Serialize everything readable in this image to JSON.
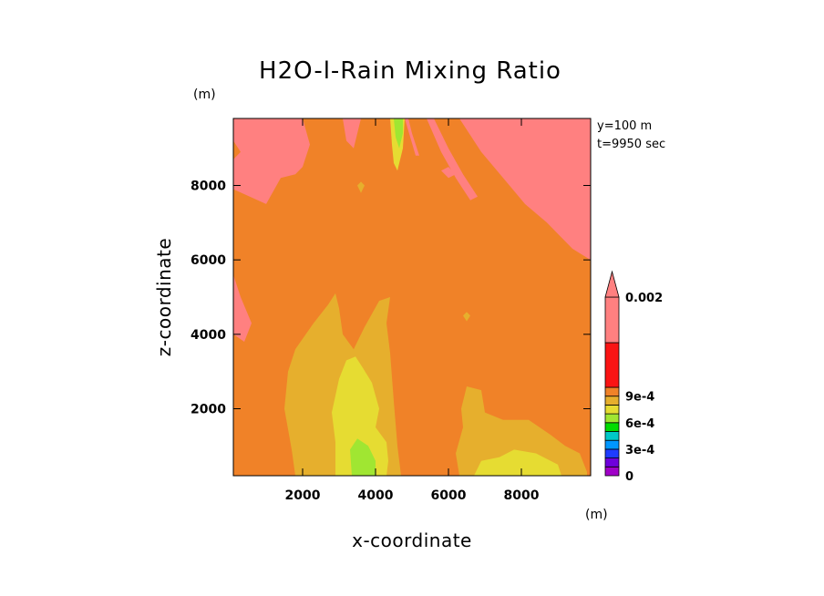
{
  "chart_data": {
    "type": "heatmap",
    "title": "H2O-l-Rain Mixing Ratio",
    "xlabel": "x-coordinate",
    "ylabel": "z-coordinate",
    "x_unit": "(m)",
    "y_unit": "(m)",
    "xlim": [
      100,
      9900
    ],
    "ylim": [
      200,
      9800
    ],
    "xticks": [
      2000,
      4000,
      6000,
      8000
    ],
    "yticks": [
      2000,
      4000,
      6000,
      8000
    ],
    "info": [
      "y=100 m",
      "t=9950 sec"
    ],
    "colorbar": {
      "levels": [
        0,
        0.0001,
        0.0002,
        0.0003,
        0.0004,
        0.0005,
        0.0006,
        0.0007,
        0.0008,
        0.0009,
        0.002
      ],
      "colors": [
        "#a000c8",
        "#6e00dc",
        "#1e3cff",
        "#0096ff",
        "#00c8c8",
        "#00dc00",
        "#a0e632",
        "#e6dc32",
        "#e6af2d",
        "#f08228",
        "#fa1414",
        "#ff8080"
      ],
      "labels": [
        {
          "value": 0,
          "text": "0"
        },
        {
          "value": 0.0003,
          "text": "3e-4"
        },
        {
          "value": 0.0006,
          "text": "6e-4"
        },
        {
          "value": 0.0009,
          "text": "9e-4"
        },
        {
          "value": 0.002,
          "text": "0.002"
        }
      ],
      "extend": "max"
    },
    "background_range": "9e-4 to 0.002",
    "regions": [
      {
        "range": "0.0008 to 0.0009",
        "polygon": [
          [
            1800,
            200
          ],
          [
            1700,
            900
          ],
          [
            1500,
            2000
          ],
          [
            1600,
            3000
          ],
          [
            1800,
            3600
          ],
          [
            2300,
            4300
          ],
          [
            2700,
            4800
          ],
          [
            2900,
            5100
          ],
          [
            3000,
            4700
          ],
          [
            3100,
            4000
          ],
          [
            3400,
            3600
          ],
          [
            3700,
            4200
          ],
          [
            4100,
            4900
          ],
          [
            4400,
            5000
          ],
          [
            4300,
            4300
          ],
          [
            4400,
            3500
          ],
          [
            4500,
            2200
          ],
          [
            4600,
            1000
          ],
          [
            4700,
            200
          ]
        ]
      },
      {
        "range": "0.0007 to 0.0008",
        "polygon": [
          [
            2900,
            200
          ],
          [
            2900,
            1100
          ],
          [
            2800,
            1900
          ],
          [
            3000,
            2800
          ],
          [
            3200,
            3300
          ],
          [
            3450,
            3400
          ],
          [
            3650,
            3100
          ],
          [
            3900,
            2700
          ],
          [
            4100,
            2000
          ],
          [
            4000,
            1500
          ],
          [
            4300,
            1100
          ],
          [
            4350,
            600
          ],
          [
            4300,
            200
          ]
        ]
      },
      {
        "range": "0.0006 to 0.0007",
        "polygon": [
          [
            3350,
            200
          ],
          [
            3300,
            900
          ],
          [
            3500,
            1200
          ],
          [
            3800,
            1000
          ],
          [
            4000,
            600
          ],
          [
            4000,
            200
          ]
        ]
      },
      {
        "range": "0.0008 to 0.0009",
        "polygon": [
          [
            6300,
            200
          ],
          [
            6200,
            800
          ],
          [
            6400,
            1500
          ],
          [
            6350,
            2000
          ],
          [
            6500,
            2600
          ],
          [
            6900,
            2500
          ],
          [
            7000,
            1900
          ],
          [
            7500,
            1700
          ],
          [
            8200,
            1700
          ],
          [
            8800,
            1300
          ],
          [
            9200,
            1000
          ],
          [
            9600,
            800
          ],
          [
            9800,
            300
          ],
          [
            9800,
            200
          ]
        ]
      },
      {
        "range": "0.0007 to 0.0008",
        "polygon": [
          [
            6700,
            200
          ],
          [
            6900,
            600
          ],
          [
            7400,
            700
          ],
          [
            7800,
            900
          ],
          [
            8400,
            800
          ],
          [
            9000,
            500
          ],
          [
            9100,
            200
          ]
        ]
      },
      {
        "range": "0.0007 to 0.0008",
        "polygon": [
          [
            4400,
            9800
          ],
          [
            4450,
            9100
          ],
          [
            4500,
            8600
          ],
          [
            4600,
            8400
          ],
          [
            4750,
            9000
          ],
          [
            4800,
            9800
          ]
        ]
      },
      {
        "range": "0.0006 to 0.0007",
        "polygon": [
          [
            4500,
            9800
          ],
          [
            4550,
            9300
          ],
          [
            4650,
            9000
          ],
          [
            4750,
            9400
          ],
          [
            4750,
            9800
          ]
        ]
      },
      {
        "range": "0.0008 to 0.0009",
        "polygon": [
          [
            3500,
            8000
          ],
          [
            3600,
            7800
          ],
          [
            3700,
            8000
          ],
          [
            3600,
            8100
          ]
        ]
      },
      {
        "range": "0.0008 to 0.0009",
        "polygon": [
          [
            6400,
            4500
          ],
          [
            6500,
            4350
          ],
          [
            6600,
            4500
          ],
          [
            6500,
            4600
          ]
        ]
      },
      {
        "range": "0.002 +",
        "polygon": [
          [
            100,
            9800
          ],
          [
            100,
            9200
          ],
          [
            300,
            8900
          ],
          [
            100,
            8700
          ],
          [
            100,
            7900
          ],
          [
            1000,
            7500
          ],
          [
            1400,
            8200
          ],
          [
            1800,
            8300
          ],
          [
            2000,
            8500
          ],
          [
            2200,
            9100
          ],
          [
            2000,
            9800
          ]
        ]
      },
      {
        "range": "0.002 +",
        "polygon": [
          [
            3100,
            9800
          ],
          [
            3200,
            9200
          ],
          [
            3400,
            9000
          ],
          [
            3600,
            9800
          ]
        ]
      },
      {
        "range": "0.002 +",
        "polygon": [
          [
            9900,
            6000
          ],
          [
            9400,
            6300
          ],
          [
            8700,
            7000
          ],
          [
            8100,
            7500
          ],
          [
            7500,
            8200
          ],
          [
            6900,
            8900
          ],
          [
            6300,
            9800
          ],
          [
            9900,
            9800
          ]
        ]
      },
      {
        "range": "0.002 +",
        "polygon": [
          [
            5600,
            9800
          ],
          [
            6000,
            9000
          ],
          [
            6400,
            8300
          ],
          [
            6800,
            7700
          ],
          [
            6600,
            7600
          ],
          [
            6200,
            8200
          ],
          [
            5800,
            8900
          ],
          [
            5400,
            9800
          ]
        ]
      },
      {
        "range": "0.002 +",
        "polygon": [
          [
            4900,
            9800
          ],
          [
            5000,
            9400
          ],
          [
            5200,
            8800
          ],
          [
            5100,
            8800
          ],
          [
            4800,
            9800
          ]
        ]
      },
      {
        "range": "0.002 +",
        "polygon": [
          [
            100,
            5600
          ],
          [
            300,
            5000
          ],
          [
            600,
            4300
          ],
          [
            400,
            3800
          ],
          [
            100,
            4000
          ]
        ]
      },
      {
        "range": "0.002 +",
        "polygon": [
          [
            5800,
            8400
          ],
          [
            6000,
            8200
          ],
          [
            6200,
            8300
          ],
          [
            6000,
            8500
          ]
        ]
      },
      {
        "range": "0.002 +",
        "polygon": [
          [
            7500,
            9800
          ],
          [
            7800,
            9300
          ],
          [
            8100,
            9000
          ],
          [
            8000,
            9800
          ]
        ]
      },
      {
        "range": "0.002 +",
        "polygon": [
          [
            7400,
            8700
          ],
          [
            7700,
            8300
          ],
          [
            7900,
            8400
          ],
          [
            7600,
            8800
          ]
        ]
      }
    ]
  }
}
